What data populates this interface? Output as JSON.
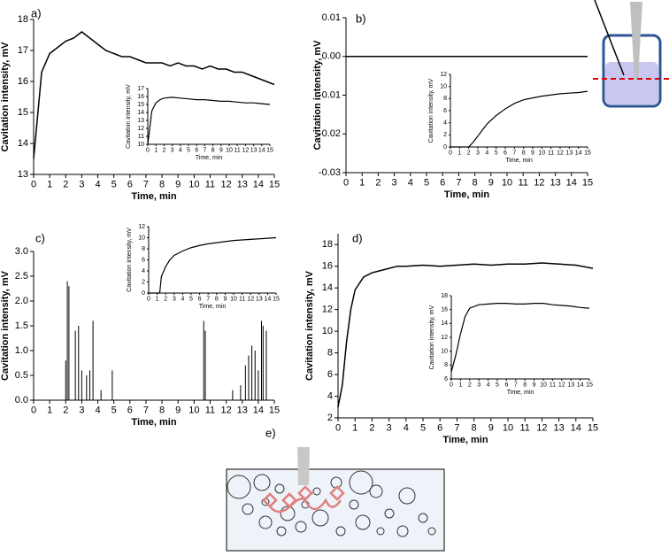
{
  "chart_data": [
    {
      "type": "line",
      "label": "a)",
      "xlabel": "Time, min",
      "ylabel": "Cavitation intensity, mV",
      "color": "#000000",
      "xlim": [
        0,
        15
      ],
      "xticks": [
        0,
        1,
        2,
        3,
        4,
        5,
        6,
        7,
        8,
        9,
        10,
        11,
        12,
        13,
        14,
        15
      ],
      "ylim": [
        13,
        18
      ],
      "yticks": [
        13,
        14,
        15,
        16,
        17,
        18
      ],
      "x": [
        0,
        0.5,
        1,
        1.5,
        2,
        2.5,
        3,
        3.5,
        4,
        4.5,
        5,
        5.5,
        6,
        6.5,
        7,
        7.5,
        8,
        8.5,
        9,
        9.5,
        10,
        10.5,
        11,
        11.5,
        12,
        12.5,
        13,
        13.5,
        14,
        14.5,
        15
      ],
      "values": [
        13.5,
        16.3,
        16.9,
        17.1,
        17.3,
        17.4,
        17.6,
        17.4,
        17.2,
        17.0,
        16.9,
        16.8,
        16.8,
        16.7,
        16.6,
        16.6,
        16.6,
        16.5,
        16.6,
        16.5,
        16.5,
        16.4,
        16.5,
        16.4,
        16.4,
        16.3,
        16.3,
        16.2,
        16.1,
        16.0,
        15.9
      ]
    },
    {
      "type": "line",
      "xlabel": "Time, min",
      "ylabel": "Cavitation intensity, mV",
      "color": "#000000",
      "xlim": [
        0,
        15
      ],
      "xticks": [
        0,
        1,
        2,
        3,
        4,
        5,
        6,
        7,
        8,
        9,
        10,
        11,
        12,
        13,
        14,
        15
      ],
      "ylim": [
        10,
        17
      ],
      "yticks": [
        10,
        11,
        12,
        13,
        14,
        15,
        16,
        17
      ],
      "x": [
        0,
        0.5,
        1,
        1.5,
        2,
        3,
        4,
        5,
        6,
        7,
        8,
        9,
        10,
        11,
        12,
        13,
        14,
        15
      ],
      "values": [
        10,
        14.2,
        15.2,
        15.6,
        15.8,
        15.9,
        15.8,
        15.7,
        15.6,
        15.6,
        15.5,
        15.4,
        15.4,
        15.3,
        15.2,
        15.2,
        15.1,
        15.0
      ]
    },
    {
      "type": "line",
      "label": "b)",
      "xlabel": "Time, min",
      "ylabel": "Cavitation intensity, mV",
      "color": "#000000",
      "xlim": [
        0,
        15
      ],
      "xticks": [
        0,
        1,
        2,
        3,
        4,
        5,
        6,
        7,
        8,
        9,
        10,
        11,
        12,
        13,
        14,
        15
      ],
      "ylim": [
        -0.03,
        0.01
      ],
      "yticks": [
        -0.03,
        -0.02,
        -0.01,
        {
          "value": 0,
          "label": "0.00"
        },
        0.01
      ],
      "x": [
        0,
        15
      ],
      "values": [
        0,
        0
      ]
    },
    {
      "type": "line",
      "xlabel": "Time, min",
      "ylabel": "Cavitation intensity, mV",
      "color": "#000000",
      "xlim": [
        0,
        15
      ],
      "xticks": [
        0,
        1,
        2,
        3,
        4,
        5,
        6,
        7,
        8,
        9,
        10,
        11,
        12,
        13,
        14,
        15
      ],
      "ylim": [
        0,
        12
      ],
      "yticks": [
        0,
        2,
        4,
        6,
        8,
        10,
        12
      ],
      "x": [
        0,
        1,
        2,
        2.5,
        3,
        3.5,
        4,
        5,
        6,
        7,
        8,
        9,
        10,
        11,
        12,
        13,
        14,
        15
      ],
      "values": [
        0,
        0,
        0,
        0.8,
        1.8,
        2.8,
        3.8,
        5.2,
        6.3,
        7.2,
        7.8,
        8.1,
        8.4,
        8.6,
        8.8,
        8.9,
        9.0,
        9.2
      ]
    },
    {
      "type": "bar",
      "label": "c)",
      "xlabel": "Time, min",
      "ylabel": "Cavitation intensity, mV",
      "color": "#000000",
      "xlim": [
        0,
        15
      ],
      "xticks": [
        0,
        1,
        2,
        3,
        4,
        5,
        6,
        7,
        8,
        9,
        10,
        11,
        12,
        13,
        14,
        15
      ],
      "ylim": [
        0,
        3
      ],
      "yticks": [
        {
          "value": 0,
          "label": "0.0"
        },
        0.5,
        {
          "value": 1,
          "label": "1.0"
        },
        1.5,
        {
          "value": 2,
          "label": "2.0"
        },
        2.5,
        {
          "value": 3,
          "label": "3.0"
        }
      ],
      "x": [
        2.0,
        2.1,
        2.2,
        2.6,
        2.8,
        3.0,
        3.3,
        3.5,
        3.7,
        4.2,
        4.9,
        10.6,
        10.7,
        12.4,
        12.9,
        13.2,
        13.4,
        13.6,
        13.8,
        14.0,
        14.2,
        14.3,
        14.5
      ],
      "values": [
        0.8,
        2.4,
        2.3,
        1.4,
        1.5,
        0.6,
        0.5,
        0.6,
        1.6,
        0.2,
        0.6,
        1.6,
        1.4,
        0.2,
        0.3,
        0.7,
        0.9,
        1.1,
        1.0,
        0.6,
        1.6,
        1.5,
        1.4
      ]
    },
    {
      "type": "line",
      "xlabel": "Time, min",
      "ylabel": "Cavitation intensity, mV",
      "color": "#000000",
      "xlim": [
        0,
        15
      ],
      "xticks": [
        0,
        1,
        2,
        3,
        4,
        5,
        6,
        7,
        8,
        9,
        10,
        11,
        12,
        13,
        14,
        15
      ],
      "ylim": [
        0,
        12
      ],
      "yticks": [
        0,
        2,
        4,
        6,
        8,
        10,
        12
      ],
      "x": [
        0,
        1,
        1.3,
        1.5,
        2,
        2.5,
        3,
        4,
        5,
        6,
        7,
        8,
        9,
        10,
        11,
        12,
        13,
        14,
        15
      ],
      "values": [
        0,
        0,
        0,
        3,
        4.8,
        6,
        6.8,
        7.6,
        8.2,
        8.6,
        8.9,
        9.1,
        9.3,
        9.5,
        9.6,
        9.7,
        9.8,
        9.9,
        10
      ]
    },
    {
      "type": "line",
      "label": "d)",
      "xlabel": "Time, min",
      "ylabel": "Cavitation intensity, mV",
      "color": "#000000",
      "xlim": [
        0,
        15
      ],
      "xticks": [
        0,
        1,
        2,
        3,
        4,
        5,
        6,
        7,
        8,
        9,
        10,
        11,
        12,
        13,
        14,
        15
      ],
      "ylim": [
        2,
        19
      ],
      "yticks": [
        2,
        4,
        6,
        8,
        10,
        12,
        14,
        16,
        18
      ],
      "x": [
        0,
        0.25,
        0.5,
        0.75,
        1,
        1.5,
        2,
        2.5,
        3,
        3.5,
        4,
        5,
        6,
        7,
        8,
        9,
        10,
        11,
        12,
        13,
        14,
        15
      ],
      "values": [
        3,
        5,
        9,
        12,
        13.8,
        15,
        15.4,
        15.6,
        15.8,
        16,
        16,
        16.1,
        16,
        16.1,
        16.2,
        16.1,
        16.2,
        16.2,
        16.3,
        16.2,
        16.1,
        15.8
      ]
    },
    {
      "type": "line",
      "xlabel": "Time, min",
      "ylabel": "Cavitation intensity, mV",
      "color": "#000000",
      "xlim": [
        0,
        15
      ],
      "xticks": [
        0,
        1,
        2,
        3,
        4,
        5,
        6,
        7,
        8,
        9,
        10,
        11,
        12,
        13,
        14,
        15
      ],
      "ylim": [
        6,
        18
      ],
      "yticks": [
        6,
        8,
        10,
        12,
        14,
        16,
        18
      ],
      "x": [
        0,
        0.5,
        1,
        1.5,
        2,
        3,
        4,
        5,
        6,
        7,
        8,
        9,
        10,
        11,
        12,
        13,
        14,
        15
      ],
      "values": [
        7,
        9.5,
        12.5,
        15,
        16.2,
        16.7,
        16.8,
        16.9,
        16.9,
        16.8,
        16.8,
        16.9,
        16.9,
        16.7,
        16.6,
        16.5,
        16.3,
        16.2
      ]
    }
  ],
  "diagram_e": {
    "label": "e)"
  }
}
